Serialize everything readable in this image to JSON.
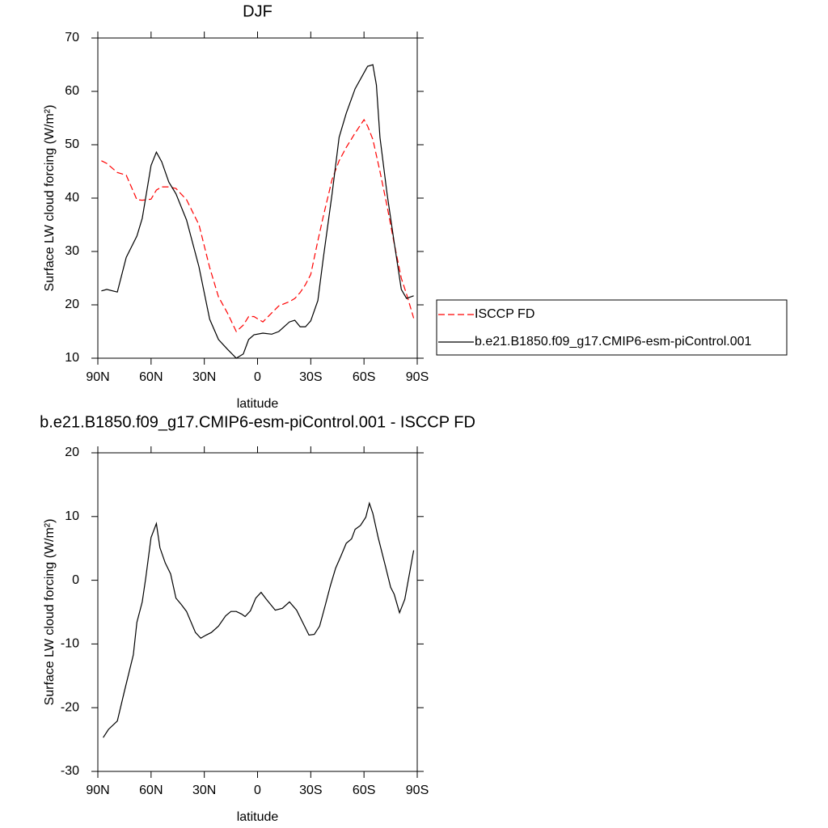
{
  "chart_data": [
    {
      "type": "line",
      "title": "DJF",
      "x_label": "latitude",
      "y_label": "Surface LW cloud forcing (W/m²)",
      "x": [
        88,
        85,
        79,
        74,
        68,
        65,
        60,
        57,
        54,
        50,
        46,
        40,
        33,
        27,
        22,
        17,
        12,
        8,
        5,
        2,
        -3,
        -8,
        -12,
        -18,
        -21,
        -24,
        -27,
        -30,
        -34,
        -37,
        -42,
        -46,
        -50,
        -55,
        -60,
        -62,
        -65,
        -67,
        -69,
        -73,
        -77,
        -81,
        -84,
        -88
      ],
      "series": [
        {
          "name": "ISCCP FD",
          "color": "#ff0000",
          "line_style": "dashed",
          "values": [
            47,
            46.5,
            44.8,
            44.3,
            39.7,
            39.6,
            39.8,
            41.5,
            42.1,
            42.1,
            41.8,
            39.7,
            35,
            27,
            21.5,
            18.5,
            15,
            16.2,
            17.8,
            17.8,
            16.8,
            18.5,
            19.8,
            20.6,
            21.2,
            22.3,
            23.8,
            25.7,
            32,
            36.5,
            43.5,
            47,
            49.5,
            52.2,
            54.7,
            53.5,
            51,
            48,
            45,
            38.5,
            31.5,
            25,
            22,
            17.5
          ]
        },
        {
          "name": "b.e21.B1850.f09_g17.CMIP6-esm-piControl.001",
          "color": "#000000",
          "line_style": "solid",
          "values": [
            22.6,
            22.9,
            22.4,
            28.9,
            32.9,
            36.2,
            46.1,
            48.6,
            46.8,
            43.0,
            40.8,
            35.9,
            27.1,
            17.3,
            13.5,
            11.7,
            10,
            10.8,
            13.5,
            14.4,
            14.7,
            14.5,
            15,
            16.8,
            17.1,
            15.9,
            15.9,
            17,
            20.8,
            28.6,
            40.8,
            51.4,
            55.9,
            60.5,
            63.5,
            64.7,
            65,
            61.2,
            51.4,
            40.8,
            31.7,
            22.9,
            21.2,
            21.7
          ]
        }
      ],
      "xlim": [
        90,
        -90
      ],
      "xticks": [
        {
          "value": 90,
          "label": "90N"
        },
        {
          "value": 60,
          "label": "60N"
        },
        {
          "value": 30,
          "label": "30N"
        },
        0,
        {
          "value": -30,
          "label": "30S"
        },
        {
          "value": -60,
          "label": "60S"
        },
        {
          "value": -90,
          "label": "90S"
        }
      ],
      "ylim": [
        10,
        70
      ],
      "yticks": [
        10,
        20,
        30,
        40,
        50,
        60,
        70
      ],
      "legend": "right"
    },
    {
      "type": "line",
      "title": "b.e21.B1850.f09_g17.CMIP6-esm-piControl.001 - ISCCP FD",
      "x_label": "latitude",
      "y_label": "Surface LW cloud forcing (W/m²)",
      "x": [
        87,
        84,
        79,
        75,
        70,
        68,
        65,
        63,
        60,
        57,
        55,
        52,
        49,
        46,
        43,
        40,
        35,
        32,
        29,
        26,
        22,
        18,
        15,
        12,
        9,
        7,
        4,
        1,
        -2,
        -5,
        -10,
        -14,
        -18,
        -22,
        -29,
        -32,
        -35,
        -38,
        -41,
        -44,
        -47,
        -50,
        -53,
        -55,
        -58,
        -61,
        -63,
        -65,
        -68,
        -72,
        -75,
        -77,
        -80,
        -83,
        -86,
        -88
      ],
      "values": [
        -24.7,
        -23.4,
        -22.1,
        -17.4,
        -11.7,
        -6.6,
        -3.4,
        0.4,
        6.7,
        8.9,
        5.1,
        2.7,
        1,
        -2.8,
        -3.8,
        -4.9,
        -8.2,
        -9.1,
        -8.6,
        -8.2,
        -7.2,
        -5.6,
        -4.9,
        -4.9,
        -5.3,
        -5.7,
        -4.8,
        -2.8,
        -1.9,
        -3,
        -4.7,
        -4.4,
        -3.4,
        -4.7,
        -8.6,
        -8.5,
        -7.2,
        -4.1,
        -0.9,
        1.9,
        3.8,
        5.8,
        6.5,
        8,
        8.6,
        9.9,
        12.1,
        10.5,
        6.7,
        2.3,
        -1.1,
        -2.2,
        -5.1,
        -3,
        1.6,
        4.7
      ],
      "color": "#000000",
      "xlim": [
        90,
        -90
      ],
      "xticks": [
        {
          "value": 90,
          "label": "90N"
        },
        {
          "value": 60,
          "label": "60N"
        },
        {
          "value": 30,
          "label": "30N"
        },
        0,
        {
          "value": -30,
          "label": "30S"
        },
        {
          "value": -60,
          "label": "60S"
        },
        {
          "value": -90,
          "label": "90S"
        }
      ],
      "ylim": [
        -30,
        20
      ],
      "yticks": [
        -30,
        -20,
        -10,
        0,
        10,
        20
      ]
    }
  ]
}
